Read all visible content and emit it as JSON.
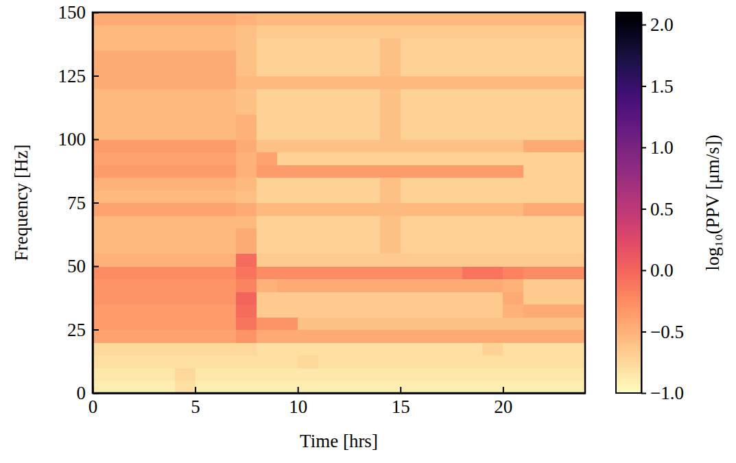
{
  "chart_data": {
    "type": "heatmap",
    "x_label": "Time [hrs]",
    "y_label": "Frequency [Hz]",
    "colorbar_label": "log₁₀(PPV [μm/s])",
    "xlim": [
      0,
      24
    ],
    "ylim": [
      0,
      150
    ],
    "xticks": [
      0,
      5,
      10,
      15,
      20
    ],
    "yticks": [
      0,
      25,
      50,
      75,
      100,
      125,
      150
    ],
    "color": "magma_r",
    "color_range": [
      -1,
      2.1
    ],
    "color_ticks": [
      {
        "value": -1,
        "label": "−1.0"
      },
      {
        "value": -0.5,
        "label": "−0.5"
      },
      {
        "value": 0,
        "label": "0.0"
      },
      {
        "value": 0.5,
        "label": "0.5"
      },
      {
        "value": 1,
        "label": "1.0"
      },
      {
        "value": 1.5,
        "label": "1.5"
      },
      {
        "value": 2,
        "label": "2.0"
      }
    ],
    "x_bins": [
      0,
      1,
      2,
      3,
      4,
      5,
      6,
      7,
      8,
      9,
      10,
      11,
      12,
      13,
      14,
      15,
      16,
      17,
      18,
      19,
      20,
      21,
      22,
      23,
      24
    ],
    "y_bins": [
      0,
      5,
      10,
      15,
      20,
      25,
      30,
      35,
      40,
      45,
      50,
      55,
      60,
      65,
      70,
      75,
      80,
      85,
      90,
      95,
      100,
      105,
      110,
      115,
      120,
      125,
      130,
      135,
      140,
      145,
      150
    ],
    "values": [
      [
        -0.9,
        -0.9,
        -0.9,
        -0.9,
        -0.8,
        -0.9,
        -0.9,
        -0.9,
        -0.9,
        -0.9,
        -0.9,
        -0.9,
        -0.9,
        -0.9,
        -0.9,
        -0.9,
        -0.9,
        -0.9,
        -0.9,
        -0.9,
        -0.9,
        -0.9,
        -0.9,
        -0.9
      ],
      [
        -0.85,
        -0.85,
        -0.85,
        -0.85,
        -0.75,
        -0.85,
        -0.85,
        -0.85,
        -0.85,
        -0.85,
        -0.85,
        -0.85,
        -0.85,
        -0.85,
        -0.85,
        -0.85,
        -0.85,
        -0.85,
        -0.85,
        -0.85,
        -0.85,
        -0.85,
        -0.85,
        -0.85
      ],
      [
        -0.8,
        -0.8,
        -0.8,
        -0.8,
        -0.8,
        -0.8,
        -0.8,
        -0.8,
        -0.8,
        -0.8,
        -0.75,
        -0.8,
        -0.8,
        -0.8,
        -0.8,
        -0.8,
        -0.8,
        -0.8,
        -0.8,
        -0.8,
        -0.8,
        -0.8,
        -0.8,
        -0.8
      ],
      [
        -0.75,
        -0.75,
        -0.75,
        -0.75,
        -0.75,
        -0.75,
        -0.75,
        -0.75,
        -0.8,
        -0.8,
        -0.8,
        -0.8,
        -0.8,
        -0.8,
        -0.8,
        -0.8,
        -0.8,
        -0.8,
        -0.8,
        -0.7,
        -0.8,
        -0.8,
        -0.8,
        -0.8
      ],
      [
        -0.4,
        -0.4,
        -0.4,
        -0.4,
        -0.4,
        -0.4,
        -0.4,
        -0.3,
        -0.45,
        -0.45,
        -0.45,
        -0.45,
        -0.45,
        -0.45,
        -0.45,
        -0.45,
        -0.45,
        -0.45,
        -0.45,
        -0.45,
        -0.45,
        -0.45,
        -0.45,
        -0.45
      ],
      [
        -0.35,
        -0.35,
        -0.35,
        -0.35,
        -0.35,
        -0.35,
        -0.35,
        -0.1,
        -0.3,
        -0.3,
        -0.6,
        -0.6,
        -0.6,
        -0.6,
        -0.6,
        -0.6,
        -0.6,
        -0.6,
        -0.6,
        -0.6,
        -0.6,
        -0.6,
        -0.6,
        -0.6
      ],
      [
        -0.35,
        -0.35,
        -0.35,
        -0.35,
        -0.35,
        -0.35,
        -0.35,
        -0.05,
        -0.65,
        -0.65,
        -0.65,
        -0.65,
        -0.65,
        -0.65,
        -0.65,
        -0.65,
        -0.65,
        -0.65,
        -0.65,
        -0.65,
        -0.5,
        -0.45,
        -0.45,
        -0.45
      ],
      [
        -0.3,
        -0.3,
        -0.3,
        -0.3,
        -0.3,
        -0.3,
        -0.3,
        0.0,
        -0.65,
        -0.65,
        -0.65,
        -0.65,
        -0.65,
        -0.65,
        -0.65,
        -0.65,
        -0.65,
        -0.65,
        -0.65,
        -0.65,
        -0.45,
        -0.65,
        -0.65,
        -0.65
      ],
      [
        -0.3,
        -0.3,
        -0.3,
        -0.3,
        -0.3,
        -0.3,
        -0.3,
        -0.2,
        -0.5,
        -0.45,
        -0.45,
        -0.45,
        -0.45,
        -0.45,
        -0.45,
        -0.45,
        -0.45,
        -0.45,
        -0.45,
        -0.45,
        -0.5,
        -0.65,
        -0.65,
        -0.65
      ],
      [
        -0.25,
        -0.25,
        -0.25,
        -0.25,
        -0.25,
        -0.25,
        -0.25,
        -0.1,
        -0.25,
        -0.25,
        -0.25,
        -0.25,
        -0.25,
        -0.25,
        -0.25,
        -0.25,
        -0.25,
        -0.25,
        -0.1,
        -0.1,
        -0.2,
        -0.25,
        -0.25,
        -0.25
      ],
      [
        -0.5,
        -0.5,
        -0.5,
        -0.5,
        -0.5,
        -0.5,
        -0.5,
        -0.05,
        -0.65,
        -0.65,
        -0.65,
        -0.65,
        -0.65,
        -0.65,
        -0.65,
        -0.65,
        -0.65,
        -0.65,
        -0.65,
        -0.65,
        -0.65,
        -0.65,
        -0.65,
        -0.65
      ],
      [
        -0.55,
        -0.55,
        -0.55,
        -0.55,
        -0.55,
        -0.55,
        -0.55,
        -0.45,
        -0.7,
        -0.7,
        -0.7,
        -0.7,
        -0.7,
        -0.7,
        -0.6,
        -0.7,
        -0.7,
        -0.7,
        -0.7,
        -0.7,
        -0.7,
        -0.7,
        -0.7,
        -0.7
      ],
      [
        -0.55,
        -0.55,
        -0.55,
        -0.55,
        -0.55,
        -0.55,
        -0.55,
        -0.45,
        -0.7,
        -0.7,
        -0.7,
        -0.7,
        -0.7,
        -0.7,
        -0.6,
        -0.7,
        -0.7,
        -0.7,
        -0.7,
        -0.7,
        -0.7,
        -0.7,
        -0.7,
        -0.7
      ],
      [
        -0.55,
        -0.55,
        -0.55,
        -0.55,
        -0.55,
        -0.55,
        -0.55,
        -0.55,
        -0.7,
        -0.7,
        -0.7,
        -0.7,
        -0.7,
        -0.7,
        -0.6,
        -0.7,
        -0.7,
        -0.7,
        -0.7,
        -0.7,
        -0.7,
        -0.7,
        -0.7,
        -0.7
      ],
      [
        -0.4,
        -0.4,
        -0.4,
        -0.4,
        -0.4,
        -0.4,
        -0.4,
        -0.45,
        -0.55,
        -0.55,
        -0.55,
        -0.55,
        -0.55,
        -0.55,
        -0.55,
        -0.55,
        -0.55,
        -0.55,
        -0.55,
        -0.55,
        -0.55,
        -0.45,
        -0.45,
        -0.45
      ],
      [
        -0.55,
        -0.55,
        -0.55,
        -0.55,
        -0.55,
        -0.55,
        -0.55,
        -0.6,
        -0.7,
        -0.7,
        -0.7,
        -0.7,
        -0.7,
        -0.7,
        -0.6,
        -0.7,
        -0.7,
        -0.7,
        -0.7,
        -0.7,
        -0.7,
        -0.7,
        -0.7,
        -0.7
      ],
      [
        -0.5,
        -0.5,
        -0.5,
        -0.5,
        -0.5,
        -0.5,
        -0.5,
        -0.55,
        -0.7,
        -0.7,
        -0.7,
        -0.7,
        -0.7,
        -0.7,
        -0.6,
        -0.7,
        -0.7,
        -0.7,
        -0.7,
        -0.7,
        -0.7,
        -0.7,
        -0.7,
        -0.7
      ],
      [
        -0.35,
        -0.35,
        -0.35,
        -0.35,
        -0.35,
        -0.35,
        -0.35,
        -0.5,
        -0.35,
        -0.35,
        -0.35,
        -0.35,
        -0.35,
        -0.35,
        -0.35,
        -0.35,
        -0.35,
        -0.35,
        -0.35,
        -0.35,
        -0.35,
        -0.7,
        -0.7,
        -0.7
      ],
      [
        -0.4,
        -0.4,
        -0.4,
        -0.4,
        -0.4,
        -0.4,
        -0.4,
        -0.5,
        -0.4,
        -0.7,
        -0.7,
        -0.7,
        -0.7,
        -0.7,
        -0.7,
        -0.7,
        -0.7,
        -0.7,
        -0.7,
        -0.7,
        -0.7,
        -0.7,
        -0.7,
        -0.7
      ],
      [
        -0.35,
        -0.35,
        -0.35,
        -0.35,
        -0.35,
        -0.35,
        -0.35,
        -0.45,
        -0.6,
        -0.6,
        -0.6,
        -0.6,
        -0.6,
        -0.6,
        -0.6,
        -0.6,
        -0.6,
        -0.6,
        -0.6,
        -0.6,
        -0.6,
        -0.45,
        -0.45,
        -0.45
      ],
      [
        -0.55,
        -0.55,
        -0.55,
        -0.55,
        -0.55,
        -0.55,
        -0.55,
        -0.5,
        -0.7,
        -0.7,
        -0.7,
        -0.7,
        -0.7,
        -0.7,
        -0.6,
        -0.7,
        -0.7,
        -0.7,
        -0.7,
        -0.7,
        -0.7,
        -0.7,
        -0.7,
        -0.7
      ],
      [
        -0.55,
        -0.55,
        -0.55,
        -0.55,
        -0.55,
        -0.55,
        -0.55,
        -0.5,
        -0.7,
        -0.7,
        -0.7,
        -0.7,
        -0.7,
        -0.7,
        -0.6,
        -0.7,
        -0.7,
        -0.7,
        -0.7,
        -0.7,
        -0.7,
        -0.7,
        -0.7,
        -0.7
      ],
      [
        -0.55,
        -0.55,
        -0.55,
        -0.55,
        -0.55,
        -0.55,
        -0.55,
        -0.6,
        -0.7,
        -0.7,
        -0.7,
        -0.7,
        -0.7,
        -0.7,
        -0.6,
        -0.7,
        -0.7,
        -0.7,
        -0.7,
        -0.7,
        -0.7,
        -0.7,
        -0.7,
        -0.7
      ],
      [
        -0.55,
        -0.55,
        -0.55,
        -0.55,
        -0.55,
        -0.55,
        -0.55,
        -0.6,
        -0.7,
        -0.7,
        -0.7,
        -0.7,
        -0.7,
        -0.7,
        -0.6,
        -0.7,
        -0.7,
        -0.7,
        -0.7,
        -0.7,
        -0.7,
        -0.7,
        -0.7,
        -0.7
      ],
      [
        -0.45,
        -0.45,
        -0.45,
        -0.45,
        -0.45,
        -0.45,
        -0.45,
        -0.55,
        -0.55,
        -0.55,
        -0.55,
        -0.55,
        -0.55,
        -0.55,
        -0.55,
        -0.55,
        -0.55,
        -0.55,
        -0.55,
        -0.55,
        -0.55,
        -0.55,
        -0.55,
        -0.55
      ],
      [
        -0.45,
        -0.45,
        -0.45,
        -0.45,
        -0.45,
        -0.45,
        -0.45,
        -0.6,
        -0.7,
        -0.7,
        -0.7,
        -0.7,
        -0.7,
        -0.7,
        -0.6,
        -0.7,
        -0.7,
        -0.7,
        -0.7,
        -0.7,
        -0.7,
        -0.7,
        -0.7,
        -0.7
      ],
      [
        -0.45,
        -0.45,
        -0.45,
        -0.45,
        -0.45,
        -0.45,
        -0.45,
        -0.6,
        -0.7,
        -0.7,
        -0.7,
        -0.7,
        -0.7,
        -0.7,
        -0.6,
        -0.7,
        -0.7,
        -0.7,
        -0.7,
        -0.7,
        -0.7,
        -0.7,
        -0.7,
        -0.7
      ],
      [
        -0.55,
        -0.55,
        -0.55,
        -0.55,
        -0.55,
        -0.55,
        -0.55,
        -0.6,
        -0.7,
        -0.7,
        -0.7,
        -0.7,
        -0.7,
        -0.7,
        -0.6,
        -0.7,
        -0.7,
        -0.7,
        -0.7,
        -0.7,
        -0.7,
        -0.7,
        -0.7,
        -0.7
      ],
      [
        -0.55,
        -0.55,
        -0.55,
        -0.55,
        -0.55,
        -0.55,
        -0.55,
        -0.6,
        -0.65,
        -0.65,
        -0.65,
        -0.65,
        -0.65,
        -0.65,
        -0.65,
        -0.65,
        -0.65,
        -0.65,
        -0.65,
        -0.65,
        -0.65,
        -0.65,
        -0.65,
        -0.65
      ],
      [
        -0.45,
        -0.45,
        -0.45,
        -0.45,
        -0.45,
        -0.45,
        -0.45,
        -0.5,
        -0.55,
        -0.55,
        -0.55,
        -0.55,
        -0.55,
        -0.55,
        -0.55,
        -0.55,
        -0.55,
        -0.55,
        -0.55,
        -0.55,
        -0.55,
        -0.55,
        -0.55,
        -0.55
      ]
    ]
  }
}
